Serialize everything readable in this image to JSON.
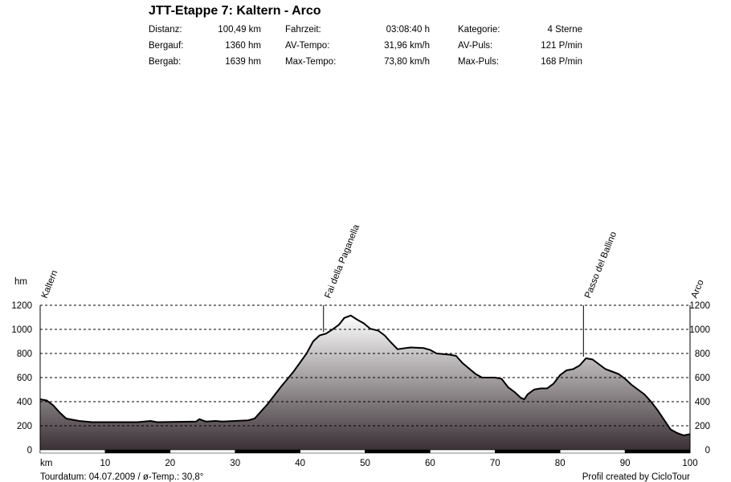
{
  "header": {
    "title": "JTT-Etappe 7: Kaltern - Arco",
    "stats": [
      [
        {
          "label": "Distanz:",
          "value": "100,49 km"
        },
        {
          "label": "Fahrzeit:",
          "value": "03:08:40 h"
        },
        {
          "label": "Kategorie:",
          "value": "4 Sterne"
        }
      ],
      [
        {
          "label": "Bergauf:",
          "value": "1360 hm"
        },
        {
          "label": "AV-Tempo:",
          "value": "31,96 km/h"
        },
        {
          "label": "AV-Puls:",
          "value": "121 P/min"
        }
      ],
      [
        {
          "label": "Bergab:",
          "value": "1639 hm"
        },
        {
          "label": "Max-Tempo:",
          "value": "73,80 km/h"
        },
        {
          "label": "Max-Puls:",
          "value": "168 P/min"
        }
      ]
    ]
  },
  "footer": {
    "left": "Tourdatum: 04.07.2009  /  ø-Temp.: 30,8°",
    "right": "Profil created by CicloTour"
  },
  "chart_data": {
    "type": "area",
    "xlabel": "km",
    "ylabel": "hm",
    "xlim": [
      0,
      100
    ],
    "ylim": [
      0,
      1200
    ],
    "xticks": [
      10,
      20,
      30,
      40,
      50,
      60,
      70,
      80,
      90,
      100
    ],
    "yticks": [
      0,
      200,
      400,
      600,
      800,
      1000,
      1200
    ],
    "grid": "horizontal dashed",
    "colors": {
      "fill_top": "#ffffff",
      "fill_bottom": "#3a3035",
      "line": "#000000"
    },
    "waypoints": [
      {
        "name": "Kaltern",
        "km": 0
      },
      {
        "name": "Fai della Paganella",
        "km": 43.6
      },
      {
        "name": "Passo del Ballino",
        "km": 83.6
      },
      {
        "name": "Arco",
        "km": 100
      }
    ],
    "x": [
      0,
      1,
      2,
      3,
      4,
      5,
      6,
      7,
      8,
      10,
      15,
      17,
      18,
      24,
      24.5,
      25.5,
      27,
      28,
      30,
      32,
      33,
      35,
      37,
      39,
      41,
      42,
      43,
      44,
      45,
      46,
      46.8,
      47.8,
      48.8,
      49.8,
      50.8,
      52,
      53,
      54,
      55,
      57,
      59,
      60,
      61,
      63,
      64,
      65,
      67,
      68,
      70,
      71,
      72,
      73,
      74,
      74.5,
      75,
      76,
      77,
      78,
      79,
      80,
      81,
      82,
      83,
      84,
      85,
      86,
      87,
      88,
      89,
      90,
      91,
      92,
      93,
      94,
      95,
      96,
      97,
      98,
      99,
      100
    ],
    "y": [
      420,
      410,
      370,
      310,
      260,
      250,
      240,
      235,
      230,
      230,
      230,
      240,
      230,
      235,
      255,
      235,
      240,
      235,
      240,
      245,
      260,
      380,
      520,
      650,
      800,
      900,
      950,
      965,
      1000,
      1040,
      1095,
      1115,
      1080,
      1050,
      1005,
      990,
      950,
      890,
      835,
      850,
      845,
      830,
      800,
      790,
      780,
      720,
      630,
      600,
      600,
      590,
      520,
      480,
      430,
      420,
      460,
      500,
      510,
      510,
      550,
      620,
      660,
      670,
      700,
      760,
      750,
      710,
      670,
      650,
      630,
      590,
      540,
      500,
      460,
      400,
      330,
      250,
      170,
      140,
      120,
      130
    ]
  }
}
